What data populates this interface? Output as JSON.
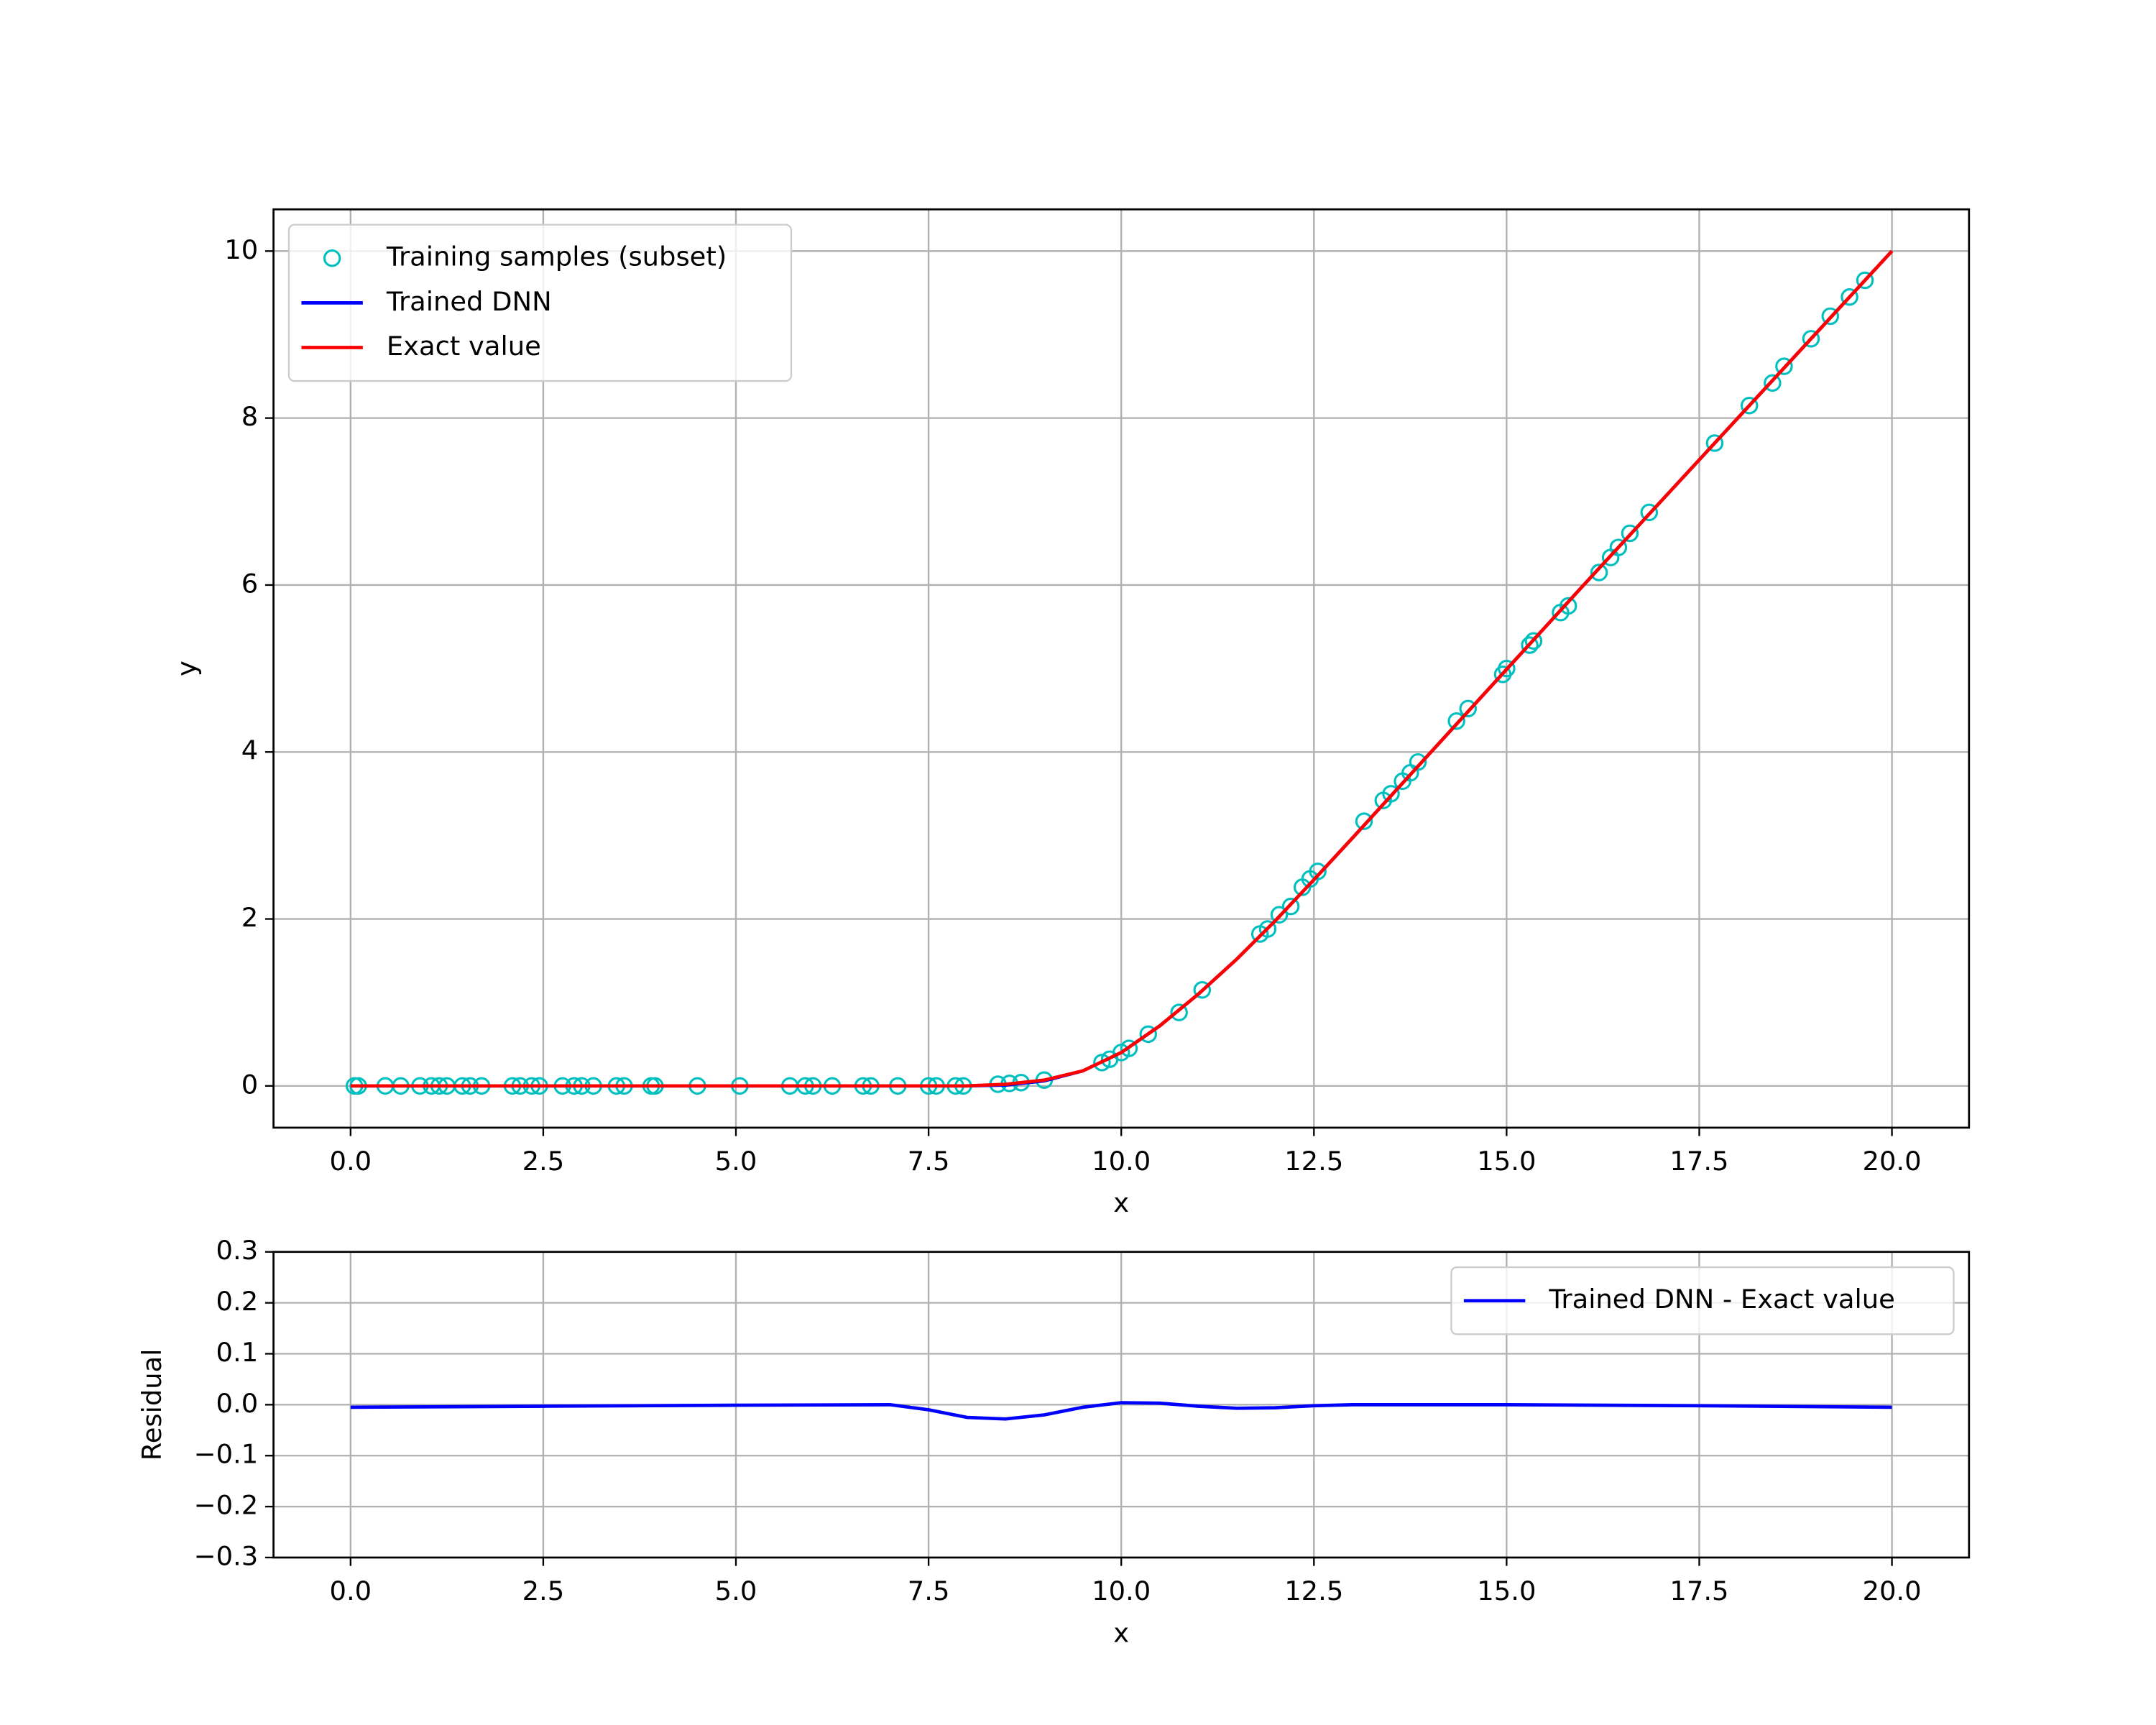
{
  "chart_data": [
    {
      "type": "line",
      "xlabel": "x",
      "ylabel": "y",
      "grid": true,
      "legend": "upper left",
      "xlim": [
        -1,
        21
      ],
      "ylim": [
        -0.5,
        10.5
      ],
      "xticks": [
        {
          "value": 0,
          "label": "0.0"
        },
        2.5,
        {
          "value": 5,
          "label": "5.0"
        },
        7.5,
        {
          "value": 10,
          "label": "10.0"
        },
        12.5,
        {
          "value": 15,
          "label": "15.0"
        },
        17.5,
        {
          "value": 20,
          "label": "20.0"
        }
      ],
      "yticks": [
        0,
        2,
        4,
        6,
        8,
        10
      ],
      "series": [
        {
          "name": "Training samples (subset)",
          "type": "scatter",
          "color": "#00bfbf",
          "x": [
            0.05,
            0.1,
            0.45,
            0.65,
            0.9,
            1.05,
            1.15,
            1.25,
            1.45,
            1.55,
            1.7,
            2.1,
            2.2,
            2.35,
            2.45,
            2.75,
            2.9,
            3.0,
            3.15,
            3.45,
            3.55,
            3.9,
            3.95,
            4.5,
            5.05,
            5.7,
            5.9,
            6.0,
            6.25,
            6.65,
            6.75,
            7.1,
            7.5,
            7.6,
            7.85,
            7.95,
            8.4,
            8.55,
            8.7,
            9.0,
            9.75,
            9.85,
            10.0,
            10.1,
            10.35,
            10.75,
            11.05,
            11.8,
            11.9,
            12.05,
            12.2,
            12.35,
            12.45,
            12.55,
            13.15,
            13.4,
            13.5,
            13.65,
            13.75,
            13.85,
            14.35,
            14.5,
            14.95,
            15.0,
            15.3,
            15.35,
            15.7,
            15.8,
            16.2,
            16.35,
            16.45,
            16.6,
            16.85,
            17.7,
            18.15,
            18.45,
            18.6,
            18.95,
            19.2,
            19.45,
            19.65
          ],
          "values": [
            0,
            0,
            0,
            0,
            0,
            0,
            0,
            0,
            0,
            0,
            0,
            0,
            0,
            0,
            0,
            0,
            0,
            0,
            0,
            0,
            0,
            0,
            0,
            0,
            0,
            0,
            0,
            0,
            0,
            0,
            0,
            0,
            0,
            0,
            0,
            0,
            0.02,
            0.03,
            0.04,
            0.07,
            0.28,
            0.32,
            0.4,
            0.45,
            0.62,
            0.88,
            1.15,
            1.82,
            1.88,
            2.05,
            2.15,
            2.38,
            2.48,
            2.57,
            3.17,
            3.42,
            3.5,
            3.65,
            3.75,
            3.88,
            4.37,
            4.52,
            4.93,
            5.0,
            5.28,
            5.33,
            5.67,
            5.75,
            6.15,
            6.33,
            6.45,
            6.62,
            6.87,
            7.7,
            8.15,
            8.42,
            8.62,
            8.95,
            9.22,
            9.45,
            9.65
          ]
        },
        {
          "name": "Trained DNN",
          "type": "line",
          "color": "#0000ff",
          "x": [
            0,
            1,
            2,
            3,
            4,
            5,
            6,
            7,
            8,
            8.5,
            9,
            9.5,
            10,
            10.5,
            11,
            11.5,
            12,
            12.5,
            13,
            14,
            15,
            16,
            17,
            18,
            19,
            20
          ],
          "values": [
            0,
            0,
            0,
            0,
            0,
            0,
            0,
            0,
            0,
            0.01,
            0.06,
            0.18,
            0.4,
            0.72,
            1.1,
            1.52,
            1.98,
            2.47,
            2.97,
            3.98,
            4.99,
            6,
            7,
            8,
            9,
            10
          ]
        },
        {
          "name": "Exact value",
          "type": "line",
          "color": "#ff0000",
          "x": [
            0,
            1,
            2,
            3,
            4,
            5,
            6,
            7,
            8,
            8.5,
            9,
            9.5,
            10,
            10.5,
            11,
            11.5,
            12,
            12.5,
            13,
            14,
            15,
            16,
            17,
            18,
            19,
            20
          ],
          "values": [
            0,
            0,
            0,
            0,
            0,
            0,
            0,
            0,
            0,
            0.02,
            0.07,
            0.18,
            0.4,
            0.72,
            1.1,
            1.52,
            1.98,
            2.47,
            2.97,
            3.98,
            4.99,
            6,
            7,
            8,
            9,
            10
          ]
        }
      ]
    },
    {
      "type": "line",
      "xlabel": "x",
      "ylabel": "Residual",
      "grid": true,
      "legend": "upper right",
      "xlim": [
        -1,
        21
      ],
      "ylim": [
        -0.3,
        0.3
      ],
      "xticks": [
        {
          "value": 0,
          "label": "0.0"
        },
        2.5,
        {
          "value": 5,
          "label": "5.0"
        },
        7.5,
        {
          "value": 10,
          "label": "10.0"
        },
        12.5,
        {
          "value": 15,
          "label": "15.0"
        },
        17.5,
        {
          "value": 20,
          "label": "20.0"
        }
      ],
      "yticks": [
        {
          "value": -0.3,
          "label": "−0.3"
        },
        {
          "value": -0.2,
          "label": "−0.2"
        },
        {
          "value": -0.1,
          "label": "−0.1"
        },
        {
          "value": 0,
          "label": "0.0"
        },
        0.1,
        0.2,
        0.3
      ],
      "series": [
        {
          "name": "Trained DNN - Exact value",
          "type": "line",
          "color": "#0000ff",
          "x": [
            0,
            2.5,
            5,
            7,
            7.5,
            8,
            8.5,
            9,
            9.5,
            10,
            10.5,
            11,
            11.5,
            12,
            12.5,
            13,
            15,
            17.5,
            20
          ],
          "values": [
            -0.005,
            -0.003,
            -0.001,
            0,
            -0.01,
            -0.025,
            -0.028,
            -0.02,
            -0.005,
            0.004,
            0.003,
            -0.003,
            -0.007,
            -0.006,
            -0.002,
            0,
            0,
            -0.002,
            -0.005
          ]
        }
      ]
    }
  ]
}
